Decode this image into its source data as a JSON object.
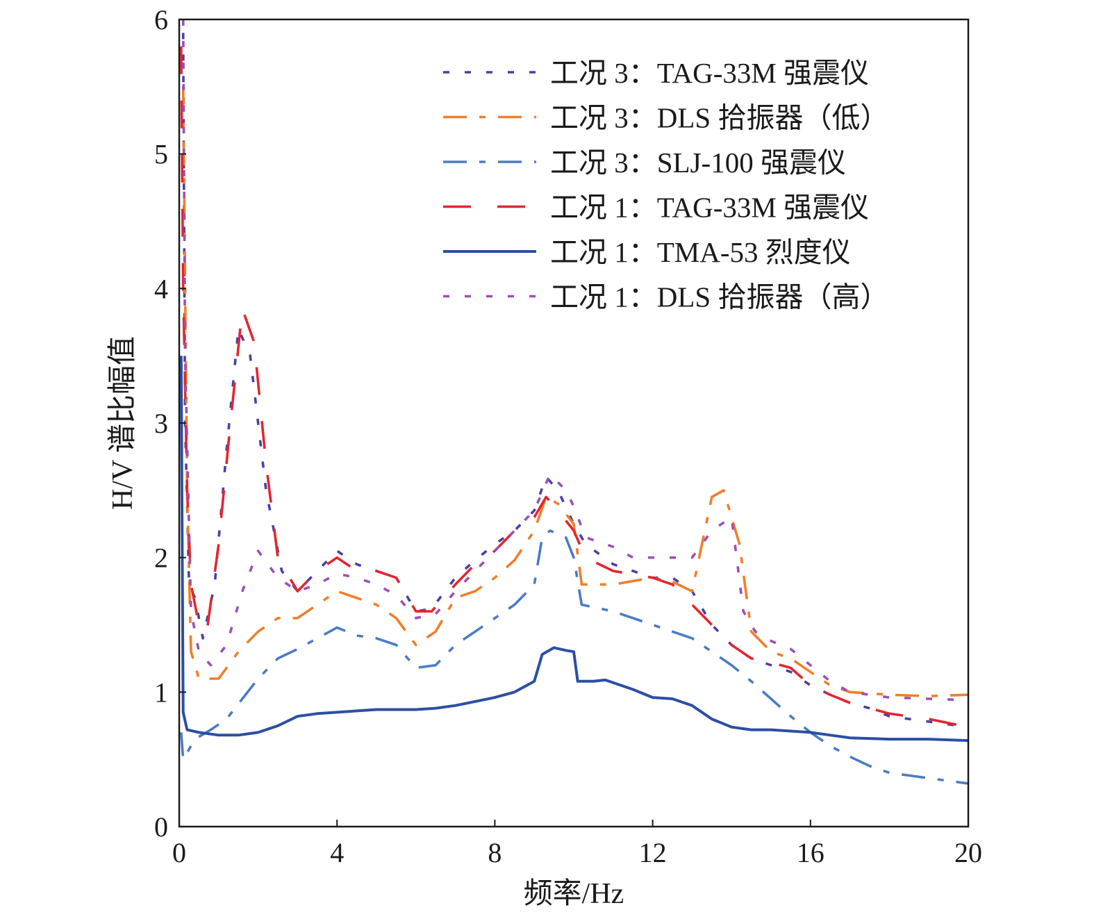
{
  "chart_data": {
    "type": "line",
    "title": "",
    "xlabel": "频率/Hz",
    "ylabel": "H/V 谱比幅值",
    "xlim": [
      0,
      20
    ],
    "ylim": [
      0,
      6
    ],
    "xticks": [
      "0",
      "4",
      "8",
      "12",
      "16",
      "20"
    ],
    "yticks": [
      "0",
      "1",
      "2",
      "3",
      "4",
      "5",
      "6"
    ],
    "grid": false,
    "legend_position": "top-right",
    "series": [
      {
        "name": "工况 3：TAG-33M 强震仪",
        "color": "#4b3fa8",
        "dash": "dot",
        "points": [
          [
            0.1,
            5.9
          ],
          [
            0.15,
            3.0
          ],
          [
            0.25,
            1.8
          ],
          [
            0.4,
            1.7
          ],
          [
            0.6,
            1.4
          ],
          [
            0.9,
            1.8
          ],
          [
            1.2,
            2.8
          ],
          [
            1.5,
            3.7
          ],
          [
            1.8,
            3.5
          ],
          [
            2.2,
            2.5
          ],
          [
            2.6,
            1.9
          ],
          [
            3.0,
            1.75
          ],
          [
            3.5,
            1.9
          ],
          [
            4.0,
            2.05
          ],
          [
            4.5,
            1.95
          ],
          [
            5.0,
            1.9
          ],
          [
            5.5,
            1.85
          ],
          [
            6.0,
            1.6
          ],
          [
            6.4,
            1.62
          ],
          [
            7.0,
            1.85
          ],
          [
            7.5,
            1.98
          ],
          [
            8.0,
            2.1
          ],
          [
            8.5,
            2.2
          ],
          [
            9.0,
            2.35
          ],
          [
            9.3,
            2.6
          ],
          [
            9.6,
            2.5
          ],
          [
            10.0,
            2.25
          ],
          [
            10.3,
            2.1
          ],
          [
            11.0,
            1.95
          ],
          [
            12.0,
            1.85
          ],
          [
            12.5,
            1.85
          ],
          [
            13.0,
            1.75
          ],
          [
            13.5,
            1.5
          ],
          [
            14.0,
            1.35
          ],
          [
            14.5,
            1.25
          ],
          [
            15.0,
            1.2
          ],
          [
            15.5,
            1.15
          ],
          [
            16.0,
            1.05
          ],
          [
            16.5,
            0.98
          ],
          [
            17.0,
            0.92
          ],
          [
            17.5,
            0.88
          ],
          [
            18.0,
            0.82
          ],
          [
            19.0,
            0.78
          ],
          [
            20.0,
            0.74
          ]
        ]
      },
      {
        "name": "工况 3：DLS 拾振器（低）",
        "color": "#f07f2a",
        "dash": "dashdot",
        "points": [
          [
            0.1,
            5.5
          ],
          [
            0.2,
            2.5
          ],
          [
            0.3,
            1.3
          ],
          [
            0.5,
            1.1
          ],
          [
            1.0,
            1.1
          ],
          [
            1.5,
            1.3
          ],
          [
            2.0,
            1.45
          ],
          [
            2.5,
            1.55
          ],
          [
            3.0,
            1.55
          ],
          [
            3.5,
            1.65
          ],
          [
            4.0,
            1.75
          ],
          [
            4.5,
            1.7
          ],
          [
            5.0,
            1.65
          ],
          [
            5.5,
            1.55
          ],
          [
            6.0,
            1.35
          ],
          [
            6.5,
            1.45
          ],
          [
            7.0,
            1.7
          ],
          [
            7.5,
            1.75
          ],
          [
            8.0,
            1.85
          ],
          [
            8.5,
            1.98
          ],
          [
            9.0,
            2.2
          ],
          [
            9.3,
            2.45
          ],
          [
            9.6,
            2.4
          ],
          [
            10.0,
            2.25
          ],
          [
            10.2,
            1.8
          ],
          [
            11.0,
            1.8
          ],
          [
            12.0,
            1.85
          ],
          [
            12.5,
            1.82
          ],
          [
            13.0,
            1.75
          ],
          [
            13.5,
            2.45
          ],
          [
            13.8,
            2.5
          ],
          [
            14.2,
            2.1
          ],
          [
            14.5,
            1.45
          ],
          [
            15.0,
            1.3
          ],
          [
            15.5,
            1.25
          ],
          [
            16.0,
            1.15
          ],
          [
            16.5,
            1.05
          ],
          [
            17.0,
            1.0
          ],
          [
            18.0,
            0.98
          ],
          [
            19.0,
            0.97
          ],
          [
            20.0,
            0.98
          ]
        ]
      },
      {
        "name": "工况 3：SLJ-100 强震仪",
        "color": "#4a7cc4",
        "dash": "dashdot",
        "points": [
          [
            0.05,
            0.7
          ],
          [
            0.1,
            0.5
          ],
          [
            0.2,
            0.55
          ],
          [
            0.4,
            0.65
          ],
          [
            0.8,
            0.72
          ],
          [
            1.2,
            0.8
          ],
          [
            1.6,
            0.95
          ],
          [
            2.0,
            1.1
          ],
          [
            2.5,
            1.25
          ],
          [
            3.0,
            1.32
          ],
          [
            3.5,
            1.4
          ],
          [
            4.0,
            1.48
          ],
          [
            4.5,
            1.42
          ],
          [
            5.0,
            1.4
          ],
          [
            5.5,
            1.35
          ],
          [
            6.0,
            1.18
          ],
          [
            6.5,
            1.2
          ],
          [
            7.0,
            1.35
          ],
          [
            7.5,
            1.45
          ],
          [
            8.0,
            1.55
          ],
          [
            8.5,
            1.65
          ],
          [
            9.0,
            1.8
          ],
          [
            9.2,
            2.15
          ],
          [
            9.4,
            2.2
          ],
          [
            9.8,
            2.15
          ],
          [
            10.0,
            2.0
          ],
          [
            10.2,
            1.65
          ],
          [
            11.0,
            1.6
          ],
          [
            11.5,
            1.55
          ],
          [
            12.0,
            1.5
          ],
          [
            12.5,
            1.45
          ],
          [
            13.0,
            1.4
          ],
          [
            13.5,
            1.3
          ],
          [
            14.0,
            1.2
          ],
          [
            14.5,
            1.08
          ],
          [
            15.0,
            0.95
          ],
          [
            15.5,
            0.82
          ],
          [
            16.0,
            0.7
          ],
          [
            16.5,
            0.6
          ],
          [
            17.0,
            0.52
          ],
          [
            17.5,
            0.45
          ],
          [
            18.0,
            0.4
          ],
          [
            18.5,
            0.38
          ],
          [
            19.0,
            0.36
          ],
          [
            20.0,
            0.32
          ]
        ]
      },
      {
        "name": "工况 1：TAG-33M 强震仪",
        "color": "#e3262e",
        "dash": "dash",
        "points": [
          [
            0.05,
            5.8
          ],
          [
            0.1,
            4.0
          ],
          [
            0.2,
            2.5
          ],
          [
            0.3,
            1.8
          ],
          [
            0.5,
            1.5
          ],
          [
            0.7,
            1.45
          ],
          [
            1.0,
            2.1
          ],
          [
            1.3,
            3.0
          ],
          [
            1.6,
            3.85
          ],
          [
            1.9,
            3.6
          ],
          [
            2.2,
            2.7
          ],
          [
            2.5,
            2.0
          ],
          [
            3.0,
            1.75
          ],
          [
            3.5,
            1.9
          ],
          [
            4.0,
            2.0
          ],
          [
            4.5,
            1.9
          ],
          [
            5.0,
            1.9
          ],
          [
            5.5,
            1.85
          ],
          [
            6.0,
            1.6
          ],
          [
            6.4,
            1.6
          ],
          [
            7.0,
            1.8
          ],
          [
            7.5,
            1.95
          ],
          [
            8.0,
            2.05
          ],
          [
            8.5,
            2.2
          ],
          [
            9.0,
            2.3
          ],
          [
            9.3,
            2.45
          ],
          [
            9.6,
            2.35
          ],
          [
            10.0,
            2.2
          ],
          [
            10.3,
            2.0
          ],
          [
            11.0,
            1.9
          ],
          [
            12.0,
            1.85
          ],
          [
            12.5,
            1.8
          ],
          [
            13.0,
            1.65
          ],
          [
            13.5,
            1.5
          ],
          [
            14.0,
            1.35
          ],
          [
            14.5,
            1.25
          ],
          [
            15.0,
            1.22
          ],
          [
            15.5,
            1.18
          ],
          [
            16.0,
            1.05
          ],
          [
            16.5,
            0.98
          ],
          [
            17.0,
            0.92
          ],
          [
            17.5,
            0.88
          ],
          [
            18.0,
            0.84
          ],
          [
            19.0,
            0.8
          ],
          [
            20.0,
            0.74
          ]
        ]
      },
      {
        "name": "工况 1：TMA-53 烈度仪",
        "color": "#2c4fa3",
        "dash": "solid",
        "points": [
          [
            0.05,
            3.5
          ],
          [
            0.1,
            0.85
          ],
          [
            0.2,
            0.72
          ],
          [
            0.5,
            0.7
          ],
          [
            1.0,
            0.68
          ],
          [
            1.5,
            0.68
          ],
          [
            2.0,
            0.7
          ],
          [
            2.5,
            0.75
          ],
          [
            3.0,
            0.82
          ],
          [
            3.5,
            0.84
          ],
          [
            4.0,
            0.85
          ],
          [
            4.5,
            0.86
          ],
          [
            5.0,
            0.87
          ],
          [
            5.5,
            0.87
          ],
          [
            6.0,
            0.87
          ],
          [
            6.5,
            0.88
          ],
          [
            7.0,
            0.9
          ],
          [
            7.5,
            0.93
          ],
          [
            8.0,
            0.96
          ],
          [
            8.5,
            1.0
          ],
          [
            9.0,
            1.08
          ],
          [
            9.2,
            1.28
          ],
          [
            9.5,
            1.33
          ],
          [
            9.8,
            1.31
          ],
          [
            10.0,
            1.3
          ],
          [
            10.1,
            1.08
          ],
          [
            10.5,
            1.08
          ],
          [
            10.8,
            1.09
          ],
          [
            11.0,
            1.07
          ],
          [
            11.5,
            1.02
          ],
          [
            12.0,
            0.96
          ],
          [
            12.5,
            0.95
          ],
          [
            13.0,
            0.9
          ],
          [
            13.5,
            0.8
          ],
          [
            14.0,
            0.74
          ],
          [
            14.5,
            0.72
          ],
          [
            15.0,
            0.72
          ],
          [
            15.5,
            0.71
          ],
          [
            16.0,
            0.7
          ],
          [
            16.5,
            0.68
          ],
          [
            17.0,
            0.66
          ],
          [
            18.0,
            0.65
          ],
          [
            19.0,
            0.65
          ],
          [
            20.0,
            0.64
          ]
        ]
      },
      {
        "name": "工况 1：DLS 拾振器（高）",
        "color": "#9c4fb8",
        "dash": "dot",
        "points": [
          [
            0.1,
            6.0
          ],
          [
            0.15,
            3.5
          ],
          [
            0.3,
            1.6
          ],
          [
            0.5,
            1.3
          ],
          [
            0.8,
            1.2
          ],
          [
            1.2,
            1.35
          ],
          [
            1.6,
            1.75
          ],
          [
            2.0,
            2.05
          ],
          [
            2.5,
            1.85
          ],
          [
            3.0,
            1.75
          ],
          [
            3.5,
            1.8
          ],
          [
            4.0,
            1.88
          ],
          [
            4.5,
            1.85
          ],
          [
            5.0,
            1.8
          ],
          [
            5.5,
            1.72
          ],
          [
            6.0,
            1.55
          ],
          [
            6.5,
            1.58
          ],
          [
            7.0,
            1.75
          ],
          [
            7.5,
            1.9
          ],
          [
            8.0,
            2.05
          ],
          [
            8.5,
            2.2
          ],
          [
            9.0,
            2.35
          ],
          [
            9.4,
            2.62
          ],
          [
            9.8,
            2.5
          ],
          [
            10.0,
            2.38
          ],
          [
            10.3,
            2.15
          ],
          [
            11.0,
            2.08
          ],
          [
            11.5,
            2.0
          ],
          [
            12.0,
            2.0
          ],
          [
            12.5,
            2.0
          ],
          [
            13.0,
            2.0
          ],
          [
            13.5,
            2.2
          ],
          [
            14.0,
            2.3
          ],
          [
            14.3,
            1.6
          ],
          [
            14.6,
            1.45
          ],
          [
            15.0,
            1.38
          ],
          [
            15.5,
            1.32
          ],
          [
            16.0,
            1.2
          ],
          [
            16.5,
            1.08
          ],
          [
            17.0,
            1.0
          ],
          [
            17.5,
            0.98
          ],
          [
            18.0,
            0.96
          ],
          [
            19.0,
            0.95
          ],
          [
            20.0,
            0.94
          ]
        ]
      }
    ]
  }
}
